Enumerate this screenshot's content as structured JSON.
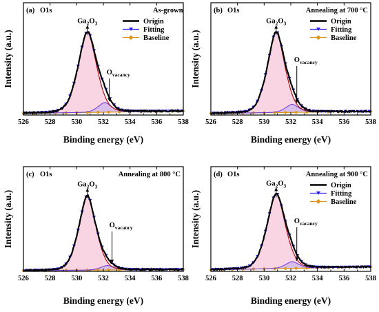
{
  "chart_data": [
    {
      "type": "line",
      "panel_label": "(a)",
      "element": "O1s",
      "condition": "As-grown",
      "xlabel": "Binding energy (eV)",
      "ylabel": "Intensity (a.u.)",
      "xlim": [
        526,
        538
      ],
      "xticks": [
        526,
        528,
        530,
        532,
        534,
        536,
        538
      ],
      "ylim": [
        0,
        1.35
      ],
      "peaks": [
        {
          "label_main": "Ga",
          "label_sub1": "2",
          "label_mid": "O",
          "label_sub2": "3",
          "center": 530.8,
          "height": 1.0,
          "sigma": 0.75,
          "gamma": 0.6
        },
        {
          "label_main": "O",
          "label_sub1": "vacancy",
          "label_mid": "",
          "label_sub2": "",
          "center": 532.1,
          "height": 0.12,
          "sigma": 0.55,
          "gamma": 0.4
        }
      ],
      "baseline": {
        "start": 0.02,
        "end": 0.05
      },
      "noise_seed": 3,
      "legend": [
        "Origin",
        "Fitting",
        "Baseline"
      ],
      "legend_position": "top-right"
    },
    {
      "type": "line",
      "panel_label": "(b)",
      "element": "O1s",
      "condition": "Annealing at 700 °C",
      "xlabel": "Binding energy (eV)",
      "ylabel": "Intensity (a.u.)",
      "xlim": [
        526,
        538
      ],
      "xticks": [
        526,
        528,
        530,
        532,
        534,
        536,
        538
      ],
      "ylim": [
        0,
        1.35
      ],
      "peaks": [
        {
          "label_main": "Ga",
          "label_sub1": "2",
          "label_mid": "O",
          "label_sub2": "3",
          "center": 530.9,
          "height": 1.0,
          "sigma": 0.72,
          "gamma": 0.55
        },
        {
          "label_main": "O",
          "label_sub1": "vacancy",
          "label_mid": "",
          "label_sub2": "",
          "center": 532.1,
          "height": 0.1,
          "sigma": 0.55,
          "gamma": 0.4
        }
      ],
      "baseline": {
        "start": 0.02,
        "end": 0.045
      },
      "noise_seed": 7,
      "legend": [
        "Origin",
        "Fitting",
        "Baseline"
      ],
      "legend_position": "top-right"
    },
    {
      "type": "line",
      "panel_label": "(c)",
      "element": "O1s",
      "condition": "Annealing at 800 °C",
      "xlabel": "Binding energy (eV)",
      "ylabel": "Intensity (a.u.)",
      "xlim": [
        526,
        538
      ],
      "xticks": [
        526,
        528,
        530,
        532,
        534,
        536,
        538
      ],
      "ylim": [
        0,
        1.35
      ],
      "peaks": [
        {
          "label_main": "Ga",
          "label_sub1": "2",
          "label_mid": "O",
          "label_sub2": "3",
          "center": 530.8,
          "height": 1.0,
          "sigma": 0.72,
          "gamma": 0.5
        },
        {
          "label_main": "O",
          "label_sub1": "vacancy",
          "label_mid": "",
          "label_sub2": "",
          "center": 532.3,
          "height": 0.06,
          "sigma": 0.55,
          "gamma": 0.4
        }
      ],
      "baseline": {
        "start": 0.01,
        "end": 0.025
      },
      "noise_seed": 11,
      "legend": [],
      "legend_position": "none"
    },
    {
      "type": "line",
      "panel_label": "(d)",
      "element": "O1s",
      "condition": "Annealing at 900 °C",
      "xlabel": "Binding energy (eV)",
      "ylabel": "Intensity (a.u.)",
      "xlim": [
        526,
        538
      ],
      "xticks": [
        526,
        528,
        530,
        532,
        534,
        536,
        538
      ],
      "ylim": [
        0,
        1.35
      ],
      "peaks": [
        {
          "label_main": "Ga",
          "label_sub1": "2",
          "label_mid": "O",
          "label_sub2": "3",
          "center": 530.9,
          "height": 1.0,
          "sigma": 0.75,
          "gamma": 0.6
        },
        {
          "label_main": "O",
          "label_sub1": "vacancy",
          "label_mid": "",
          "label_sub2": "",
          "center": 532.1,
          "height": 0.09,
          "sigma": 0.55,
          "gamma": 0.4
        }
      ],
      "baseline": {
        "start": 0.02,
        "end": 0.06
      },
      "noise_seed": 5,
      "legend": [
        "Origin",
        "Fitting",
        "Baseline"
      ],
      "legend_position": "top-right"
    }
  ],
  "colors": {
    "origin": "#000000",
    "fitting": "#2a1ff0",
    "baseline": "#d9961a",
    "peak_main_line": "#b01010",
    "peak_fill": "#f7c6d9",
    "peak_small_fill": "#c9b5f0",
    "axis": "#000000"
  }
}
